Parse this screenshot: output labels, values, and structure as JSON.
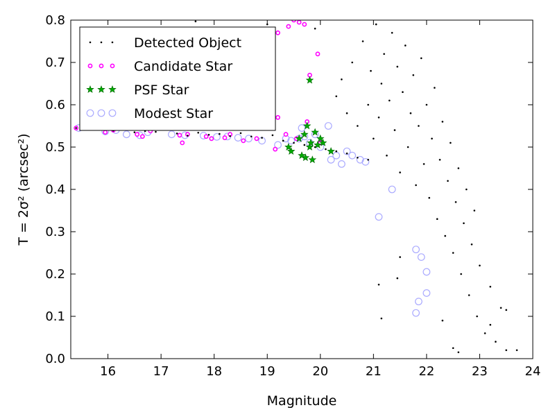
{
  "chart_data": {
    "type": "scatter",
    "title": "",
    "xlabel": "Magnitude",
    "ylabel": "T = 2σ² (arcsec²)",
    "xlim": [
      15.3,
      24.0
    ],
    "ylim": [
      0.0,
      0.8
    ],
    "xticks": [
      "16",
      "17",
      "18",
      "19",
      "20",
      "21",
      "22",
      "23",
      "24"
    ],
    "yticks": [
      "0.0",
      "0.1",
      "0.2",
      "0.3",
      "0.4",
      "0.5",
      "0.6",
      "0.7",
      "0.8"
    ],
    "grid": false,
    "legend_position": "top-left",
    "series": [
      {
        "name": "Detected Object",
        "marker": "dot",
        "color": "#000000",
        "points": [
          [
            15.4,
            0.545
          ],
          [
            15.6,
            0.548
          ],
          [
            15.9,
            0.543
          ],
          [
            16.1,
            0.539
          ],
          [
            16.3,
            0.542
          ],
          [
            16.5,
            0.535
          ],
          [
            16.7,
            0.538
          ],
          [
            16.9,
            0.536
          ],
          [
            17.3,
            0.532
          ],
          [
            17.5,
            0.527
          ],
          [
            17.7,
            0.534
          ],
          [
            17.9,
            0.529
          ],
          [
            18.1,
            0.531
          ],
          [
            18.3,
            0.526
          ],
          [
            18.5,
            0.533
          ],
          [
            18.7,
            0.525
          ],
          [
            18.9,
            0.522
          ],
          [
            19.1,
            0.528
          ],
          [
            19.3,
            0.515
          ],
          [
            19.5,
            0.51
          ],
          [
            19.7,
            0.505
          ],
          [
            19.9,
            0.5
          ],
          [
            20.1,
            0.495
          ],
          [
            20.3,
            0.49
          ],
          [
            20.5,
            0.485
          ],
          [
            20.7,
            0.475
          ],
          [
            20.9,
            0.47
          ],
          [
            17.65,
            0.797
          ],
          [
            19.0,
            0.79
          ],
          [
            19.9,
            0.78
          ],
          [
            20.3,
            0.62
          ],
          [
            20.4,
            0.66
          ],
          [
            20.5,
            0.58
          ],
          [
            20.6,
            0.7
          ],
          [
            20.7,
            0.55
          ],
          [
            20.8,
            0.75
          ],
          [
            20.9,
            0.6
          ],
          [
            20.95,
            0.68
          ],
          [
            21.0,
            0.52
          ],
          [
            21.05,
            0.79
          ],
          [
            21.1,
            0.57
          ],
          [
            21.15,
            0.65
          ],
          [
            21.2,
            0.72
          ],
          [
            21.25,
            0.48
          ],
          [
            21.3,
            0.61
          ],
          [
            21.35,
            0.77
          ],
          [
            21.4,
            0.54
          ],
          [
            21.45,
            0.69
          ],
          [
            21.5,
            0.44
          ],
          [
            21.55,
            0.63
          ],
          [
            21.6,
            0.74
          ],
          [
            21.65,
            0.5
          ],
          [
            21.7,
            0.58
          ],
          [
            21.75,
            0.67
          ],
          [
            21.8,
            0.41
          ],
          [
            21.85,
            0.55
          ],
          [
            21.9,
            0.71
          ],
          [
            21.95,
            0.46
          ],
          [
            22.0,
            0.6
          ],
          [
            22.05,
            0.38
          ],
          [
            22.1,
            0.52
          ],
          [
            22.15,
            0.64
          ],
          [
            22.2,
            0.33
          ],
          [
            22.25,
            0.47
          ],
          [
            22.3,
            0.56
          ],
          [
            22.35,
            0.29
          ],
          [
            22.4,
            0.42
          ],
          [
            22.45,
            0.51
          ],
          [
            22.5,
            0.25
          ],
          [
            22.55,
            0.37
          ],
          [
            22.6,
            0.45
          ],
          [
            22.65,
            0.2
          ],
          [
            22.7,
            0.32
          ],
          [
            22.75,
            0.4
          ],
          [
            22.8,
            0.15
          ],
          [
            22.85,
            0.27
          ],
          [
            22.9,
            0.35
          ],
          [
            22.95,
            0.1
          ],
          [
            23.0,
            0.22
          ],
          [
            23.1,
            0.06
          ],
          [
            23.2,
            0.17
          ],
          [
            23.3,
            0.04
          ],
          [
            23.4,
            0.12
          ],
          [
            23.5,
            0.02
          ],
          [
            23.7,
            0.02
          ],
          [
            21.1,
            0.175
          ],
          [
            21.15,
            0.095
          ],
          [
            21.5,
            0.24
          ],
          [
            21.45,
            0.19
          ],
          [
            22.3,
            0.09
          ],
          [
            22.5,
            0.025
          ],
          [
            22.6,
            0.015
          ],
          [
            23.2,
            0.08
          ],
          [
            23.5,
            0.115
          ]
        ]
      },
      {
        "name": "Candidate Star",
        "marker": "small-circle",
        "color": "#ff00ff",
        "points": [
          [
            15.4,
            0.545
          ],
          [
            15.95,
            0.535
          ],
          [
            16.1,
            0.54
          ],
          [
            16.55,
            0.53
          ],
          [
            16.65,
            0.525
          ],
          [
            16.8,
            0.538
          ],
          [
            17.35,
            0.528
          ],
          [
            17.4,
            0.51
          ],
          [
            17.5,
            0.53
          ],
          [
            17.85,
            0.525
          ],
          [
            17.95,
            0.52
          ],
          [
            18.2,
            0.522
          ],
          [
            18.3,
            0.53
          ],
          [
            18.55,
            0.515
          ],
          [
            18.8,
            0.52
          ],
          [
            19.15,
            0.495
          ],
          [
            19.2,
            0.77
          ],
          [
            19.4,
            0.785
          ],
          [
            19.5,
            0.8
          ],
          [
            19.6,
            0.795
          ],
          [
            19.7,
            0.79
          ],
          [
            19.8,
            0.67
          ],
          [
            19.95,
            0.72
          ],
          [
            19.35,
            0.53
          ],
          [
            19.55,
            0.52
          ],
          [
            19.75,
            0.56
          ],
          [
            20.0,
            0.51
          ],
          [
            19.2,
            0.57
          ]
        ]
      },
      {
        "name": "PSF Star",
        "marker": "star",
        "color": "#00aa00",
        "points": [
          [
            19.4,
            0.5
          ],
          [
            19.45,
            0.49
          ],
          [
            19.6,
            0.52
          ],
          [
            19.7,
            0.53
          ],
          [
            19.72,
            0.475
          ],
          [
            19.75,
            0.55
          ],
          [
            19.8,
            0.5
          ],
          [
            19.82,
            0.51
          ],
          [
            19.85,
            0.47
          ],
          [
            19.9,
            0.535
          ],
          [
            19.95,
            0.505
          ],
          [
            20.0,
            0.52
          ],
          [
            20.05,
            0.51
          ],
          [
            20.2,
            0.49
          ],
          [
            19.8,
            0.658
          ],
          [
            19.65,
            0.48
          ]
        ]
      },
      {
        "name": "Modest Star",
        "marker": "ring",
        "color": "#aaaaff",
        "points": [
          [
            15.45,
            0.545
          ],
          [
            15.95,
            0.537
          ],
          [
            16.15,
            0.54
          ],
          [
            16.35,
            0.53
          ],
          [
            16.6,
            0.528
          ],
          [
            16.75,
            0.535
          ],
          [
            17.2,
            0.53
          ],
          [
            17.45,
            0.528
          ],
          [
            17.8,
            0.527
          ],
          [
            18.05,
            0.524
          ],
          [
            18.25,
            0.525
          ],
          [
            18.45,
            0.522
          ],
          [
            18.65,
            0.52
          ],
          [
            18.9,
            0.515
          ],
          [
            19.2,
            0.505
          ],
          [
            19.35,
            0.52
          ],
          [
            19.45,
            0.515
          ],
          [
            19.6,
            0.52
          ],
          [
            19.65,
            0.545
          ],
          [
            19.7,
            0.525
          ],
          [
            19.8,
            0.51
          ],
          [
            19.9,
            0.53
          ],
          [
            20.0,
            0.5
          ],
          [
            20.15,
            0.55
          ],
          [
            20.2,
            0.47
          ],
          [
            20.3,
            0.48
          ],
          [
            20.4,
            0.46
          ],
          [
            20.5,
            0.49
          ],
          [
            20.6,
            0.48
          ],
          [
            20.75,
            0.47
          ],
          [
            20.85,
            0.465
          ],
          [
            21.1,
            0.335
          ],
          [
            21.35,
            0.4
          ],
          [
            21.8,
            0.258
          ],
          [
            21.9,
            0.24
          ],
          [
            22.0,
            0.205
          ],
          [
            21.85,
            0.135
          ],
          [
            22.0,
            0.155
          ],
          [
            21.8,
            0.108
          ]
        ]
      }
    ]
  }
}
